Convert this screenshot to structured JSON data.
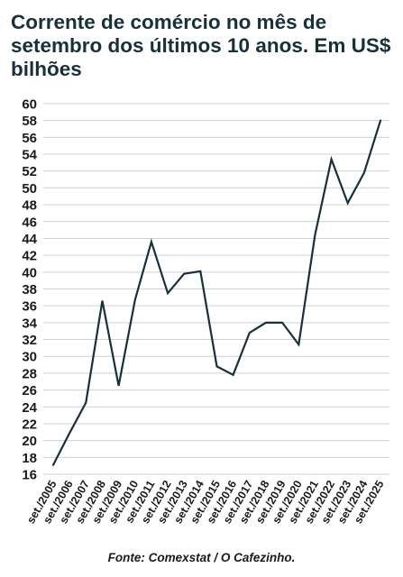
{
  "title": "Corrente de comércio no mês de setembro dos últimos 10 anos. Em US$ bilhões",
  "source": "Fonte: Comexstat / O Cafezinho.",
  "colors": {
    "line": "#17303a",
    "grid": "#d0d0d0",
    "text": "#1a1a1a",
    "title": "#17303a"
  },
  "chart_data": {
    "type": "line",
    "title": "Corrente de comércio no mês de setembro dos últimos 10 anos. Em US$ bilhões",
    "xlabel": "",
    "ylabel": "",
    "ylim": [
      16,
      60
    ],
    "yticks": [
      16,
      18,
      20,
      22,
      24,
      26,
      28,
      30,
      32,
      34,
      36,
      38,
      40,
      42,
      44,
      46,
      48,
      50,
      52,
      54,
      56,
      58,
      60
    ],
    "grid": true,
    "categories": [
      "set./2005",
      "set./2006",
      "set./2007",
      "set./2008",
      "set./2009",
      "set./2010",
      "set./2011",
      "set./2012",
      "set./2013",
      "set./2014",
      "set./2015",
      "set./2016",
      "set./2017",
      "set./2018",
      "set./2019",
      "set./2020",
      "set./2021",
      "set./2022",
      "set./2023",
      "set./2024",
      "set./2025"
    ],
    "series": [
      {
        "values": [
          17.1,
          20.9,
          24.5,
          36.6,
          26.5,
          36.7,
          43.6,
          37.5,
          39.8,
          40.1,
          28.8,
          27.8,
          32.8,
          34.0,
          34.0,
          31.4,
          44.4,
          53.4,
          48.2,
          51.8,
          58.0
        ]
      }
    ]
  }
}
